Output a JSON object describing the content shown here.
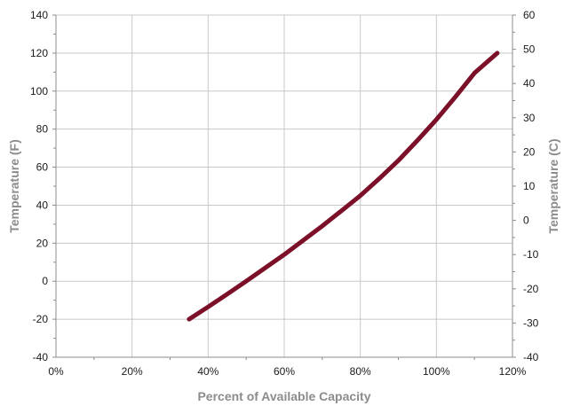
{
  "chart_data": {
    "type": "line",
    "xlabel": "Percent of Available Capacity",
    "ylabel_left": "Temperature (F)",
    "ylabel_right": "Temperature  (C)",
    "x_ticks": [
      "0%",
      "20%",
      "40%",
      "60%",
      "80%",
      "100%",
      "120%"
    ],
    "x_tick_values": [
      0,
      20,
      40,
      60,
      80,
      100,
      120
    ],
    "y_left_ticks": [
      "140",
      "120",
      "100",
      "80",
      "60",
      "40",
      "20",
      "0",
      "-20",
      "-40"
    ],
    "y_left_tick_values": [
      140,
      120,
      100,
      80,
      60,
      40,
      20,
      0,
      -20,
      -40
    ],
    "y_right_ticks": [
      "60",
      "50",
      "40",
      "30",
      "20",
      "10",
      "0",
      "-10",
      "-20",
      "-30",
      "-40"
    ],
    "y_right_tick_values": [
      60,
      50,
      40,
      30,
      20,
      10,
      0,
      -10,
      -20,
      -30,
      -40
    ],
    "xlim": [
      0,
      120
    ],
    "ylim_left": [
      -40,
      140
    ],
    "ylim_right": [
      -40,
      60
    ],
    "grid": true,
    "series": [
      {
        "color": "#7b1028",
        "x": [
          35,
          40,
          45,
          50,
          55,
          60,
          65,
          70,
          75,
          80,
          85,
          90,
          95,
          100,
          105,
          110,
          116
        ],
        "y": [
          -20,
          -13.5,
          -6.8,
          0,
          7,
          14,
          21.5,
          29,
          37,
          45,
          54,
          63.5,
          74,
          85,
          97,
          109.5,
          120
        ]
      }
    ]
  }
}
